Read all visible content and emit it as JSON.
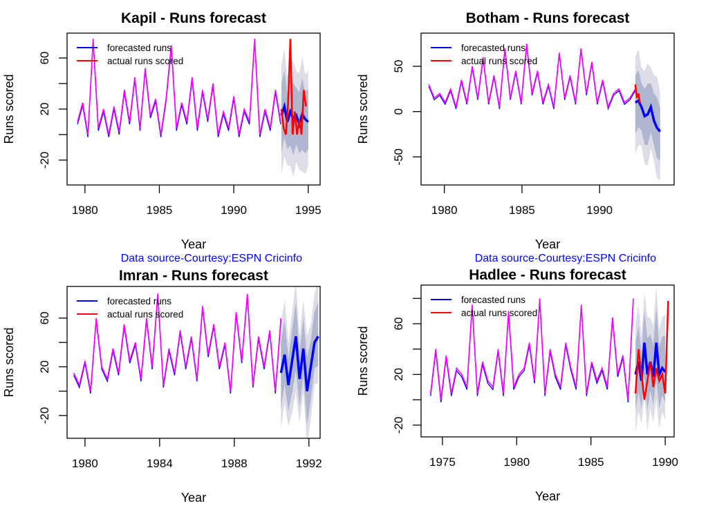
{
  "colors": {
    "forecast": "#0000ff",
    "actual": "#ff0000",
    "history": "#ff00ff",
    "fitted": "#0000ff",
    "band80": "#b0b6cf",
    "band95": "#dcdde6",
    "source_text": "#0000ff"
  },
  "source_note": "Data source-Courtesy:ESPN Cricinfo",
  "chart_data": [
    {
      "type": "line",
      "title": "Kapil - Runs forecast",
      "xlabel": "Year",
      "ylabel": "Runs scored",
      "xlim": [
        1978.8,
        1995.8
      ],
      "ylim": [
        -39.5,
        79.5
      ],
      "xticks": [
        1980,
        1985,
        1990,
        1995
      ],
      "yticks": [
        -20,
        0,
        20,
        40,
        60
      ],
      "ytick_labels": [
        "-20",
        "",
        "20",
        "",
        "60"
      ],
      "legend": {
        "position": "top-left",
        "entries": [
          "forecasted runs",
          "actual runs scored"
        ]
      },
      "history": {
        "start": 1979.5,
        "step": 0.35,
        "values": [
          10,
          25,
          0,
          75,
          5,
          20,
          0,
          22,
          2,
          35,
          10,
          45,
          5,
          52,
          15,
          28,
          0,
          28,
          70,
          5,
          25,
          10,
          45,
          5,
          35,
          12,
          40,
          0,
          18,
          5,
          30,
          0,
          20,
          10,
          75,
          0,
          20,
          5,
          35,
          10
        ]
      },
      "forecast": {
        "start": 1993.2,
        "step": 0.2,
        "values": [
          15,
          22,
          10,
          18,
          12,
          15,
          8,
          16,
          12,
          10
        ],
        "band80": 25,
        "band95": 40
      },
      "actual": {
        "start": 1993.2,
        "step": 0.15,
        "values": [
          20,
          5,
          0,
          25,
          75,
          0,
          18,
          0,
          12,
          0,
          35,
          22
        ]
      },
      "source_note": true
    },
    {
      "type": "line",
      "title": "Botham - Runs forecast",
      "xlabel": "Year",
      "ylabel": "Runs scored",
      "xlim": [
        1978.5,
        1994.8
      ],
      "ylim": [
        -81,
        86.6
      ],
      "xticks": [
        1980,
        1985,
        1990
      ],
      "yticks": [
        -50,
        0,
        50
      ],
      "ytick_labels": [
        "-50",
        "0",
        "50"
      ],
      "legend": {
        "position": "top-left",
        "entries": [
          "forecasted runs",
          "actual runs scored"
        ]
      },
      "history": {
        "start": 1979,
        "step": 0.35,
        "values": [
          30,
          15,
          20,
          10,
          25,
          5,
          35,
          10,
          50,
          15,
          60,
          10,
          40,
          5,
          70,
          15,
          45,
          10,
          75,
          20,
          45,
          10,
          30,
          5,
          65,
          15,
          40,
          10,
          70,
          20,
          55,
          10,
          35,
          5,
          20,
          25,
          10,
          15,
          25
        ]
      },
      "forecast": {
        "start": 1992.3,
        "step": 0.2,
        "values": [
          10,
          12,
          5,
          -5,
          -3,
          5,
          -10,
          -18,
          -22
        ],
        "band80": 30,
        "band95": 50
      },
      "actual": {
        "start": 1992.3,
        "step": 0.1,
        "values": [
          30,
          15,
          20,
          10
        ]
      },
      "source_note": true
    },
    {
      "type": "line",
      "title": "Imran - Runs forecast",
      "xlabel": "Year",
      "ylabel": "Runs scored",
      "xlim": [
        1979.04,
        1992.6
      ],
      "ylim": [
        -38.7,
        86
      ],
      "xticks": [
        1980,
        1984,
        1988,
        1992
      ],
      "yticks": [
        -20,
        0,
        20,
        40,
        60
      ],
      "ytick_labels": [
        "-20",
        "",
        "20",
        "",
        "60"
      ],
      "legend": {
        "position": "top-left",
        "entries": [
          "forecasted runs",
          "actual runs scored"
        ]
      },
      "history": {
        "start": 1979.4,
        "step": 0.3,
        "values": [
          15,
          5,
          25,
          0,
          60,
          20,
          10,
          35,
          15,
          55,
          25,
          40,
          10,
          60,
          20,
          80,
          5,
          35,
          15,
          50,
          20,
          45,
          10,
          70,
          30,
          55,
          20,
          40,
          0,
          65,
          25,
          80,
          5,
          45,
          20,
          50,
          0,
          60
        ]
      },
      "forecast": {
        "start": 1990.5,
        "step": 0.2,
        "values": [
          15,
          30,
          5,
          25,
          45,
          10,
          35,
          0,
          20,
          40,
          45
        ],
        "band80": 25,
        "band95": 40
      },
      "actual": {
        "start": 1990.5,
        "step": 0.2,
        "values": []
      },
      "source_note": false
    },
    {
      "type": "line",
      "title": "Hadlee - Runs forecast",
      "xlabel": "Year",
      "ylabel": "Runs scored",
      "xlim": [
        1973.56,
        1990.6
      ],
      "ylim": [
        -29.3,
        90.5
      ],
      "xticks": [
        1975,
        1980,
        1985,
        1990
      ],
      "yticks": [
        -20,
        0,
        20,
        40,
        60,
        80
      ],
      "ytick_labels": [
        "-20",
        "",
        "20",
        "",
        "60",
        ""
      ],
      "legend": {
        "position": "top-left",
        "entries": [
          "forecasted runs",
          "actual runs scored"
        ]
      },
      "history": {
        "start": 1974.2,
        "step": 0.35,
        "values": [
          5,
          40,
          0,
          35,
          5,
          25,
          20,
          10,
          75,
          5,
          30,
          15,
          10,
          40,
          5,
          70,
          10,
          20,
          25,
          45,
          15,
          80,
          5,
          40,
          20,
          10,
          45,
          25,
          10,
          75,
          5,
          30,
          15,
          25,
          10,
          65,
          20,
          35,
          0,
          80
        ]
      },
      "forecast": {
        "start": 1988,
        "step": 0.2,
        "values": [
          20,
          30,
          15,
          45,
          20,
          30,
          18,
          45,
          20,
          25,
          22
        ],
        "band80": 25,
        "band95": 40
      },
      "actual": {
        "start": 1988,
        "step": 0.2,
        "values": [
          5,
          40,
          20,
          0,
          15,
          30,
          10,
          25,
          15,
          20,
          5,
          78
        ]
      },
      "source_note": false
    }
  ]
}
